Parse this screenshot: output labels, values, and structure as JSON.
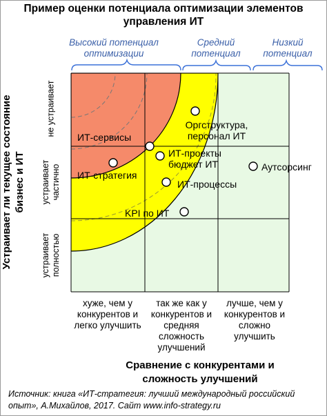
{
  "title": "Пример оценки потенциала оптимизации элементов управления ИТ",
  "categories": {
    "high": "Высокий потенциал оптимизации",
    "medium": "Средний потенциал",
    "low": "Низкий потенциал"
  },
  "y_axis": {
    "title": "Устраивает ли текущее состояние бизнес и ИТ",
    "levels": [
      "не устраивает",
      "устраивает частично",
      "устраивает полностью"
    ]
  },
  "x_axis": {
    "title": "Сравнение с конкурентами и сложность улучшений",
    "levels": [
      "хуже, чем у конкурентов и легко улучшить",
      "так же как у конкурентов и средняя сложность улучшений",
      "лучше, чем у конкурентов и сложно улучшить"
    ]
  },
  "items": {
    "orgstructure": "Оргструктура, персонал ИТ",
    "it_services": "ИТ-сервисы",
    "it_projects": "ИТ-проекты бюджет ИТ",
    "outsourcing": "Аутсорсинг",
    "it_strategy": "ИТ-стратегия",
    "it_processes": "ИТ-процессы",
    "kpi": "KPI по ИТ"
  },
  "source": "Источник: книга «ИТ-стратегия: лучший международный российский опыт», А.Михайлов, 2017.    Сайт www.info-strategy.ru",
  "colors": {
    "high_zone": "#f58a6a",
    "medium_zone": "#ffff00",
    "low_zone": "#e8f9e4",
    "brace": "#3a70d8",
    "category_text": "#3a5fa8"
  }
}
